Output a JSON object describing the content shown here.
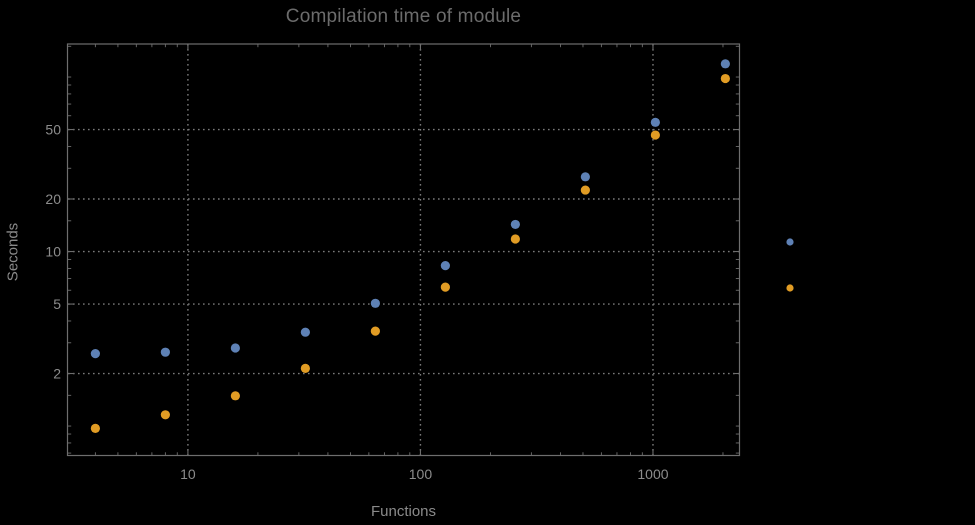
{
  "chart_data": {
    "type": "scatter",
    "title": "Compilation time of module",
    "xlabel": "Functions",
    "ylabel": "Seconds",
    "xscale": "log",
    "yscale": "log",
    "xlim": [
      3.05,
      2344
    ],
    "ylim": [
      0.678,
      154.6
    ],
    "grid": "dotted lines at labeled major ticks only",
    "legend_position": "outside-right",
    "x": [
      4,
      8,
      16,
      32,
      64,
      128,
      256,
      512,
      1024,
      2048
    ],
    "series": [
      {
        "name": "series-1",
        "color": "#5E81B5",
        "marker": "disk",
        "values": [
          2.6,
          2.65,
          2.8,
          3.45,
          5.05,
          8.3,
          14.3,
          26.8,
          55,
          119
        ]
      },
      {
        "name": "series-2",
        "color": "#E19C24",
        "marker": "disk",
        "values": [
          0.97,
          1.16,
          1.49,
          2.14,
          3.5,
          6.25,
          11.8,
          22.5,
          46.5,
          98
        ]
      }
    ],
    "x_ticks": {
      "major": [
        10,
        100,
        1000
      ],
      "major_labels": [
        "10",
        "100",
        "1000"
      ],
      "minor": [
        4,
        5,
        6,
        7,
        8,
        9,
        20,
        30,
        40,
        50,
        60,
        70,
        80,
        90,
        200,
        300,
        400,
        500,
        600,
        700,
        800,
        900,
        2000
      ]
    },
    "y_ticks": {
      "major": [
        2,
        5,
        10,
        20,
        50
      ],
      "major_labels": [
        "2",
        "5",
        "10",
        "20",
        "50"
      ],
      "minor": [
        0.7,
        0.8,
        0.9,
        1,
        1.5,
        3,
        4,
        6,
        7,
        8,
        9,
        15,
        30,
        40,
        60,
        70,
        80,
        90,
        100,
        150
      ]
    },
    "legend_markers": [
      {
        "series": "series-1",
        "color": "#5E81B5"
      },
      {
        "series": "series-2",
        "color": "#E19C24"
      }
    ]
  },
  "colors": {
    "background": "#000000",
    "frame": "#6e6e6e",
    "grid": "#7b7b7b",
    "tick": "#6e6e6e",
    "tick_label": "#8c8c8c",
    "axis_label": "#8a8a8a",
    "title": "#6c6c6c"
  }
}
